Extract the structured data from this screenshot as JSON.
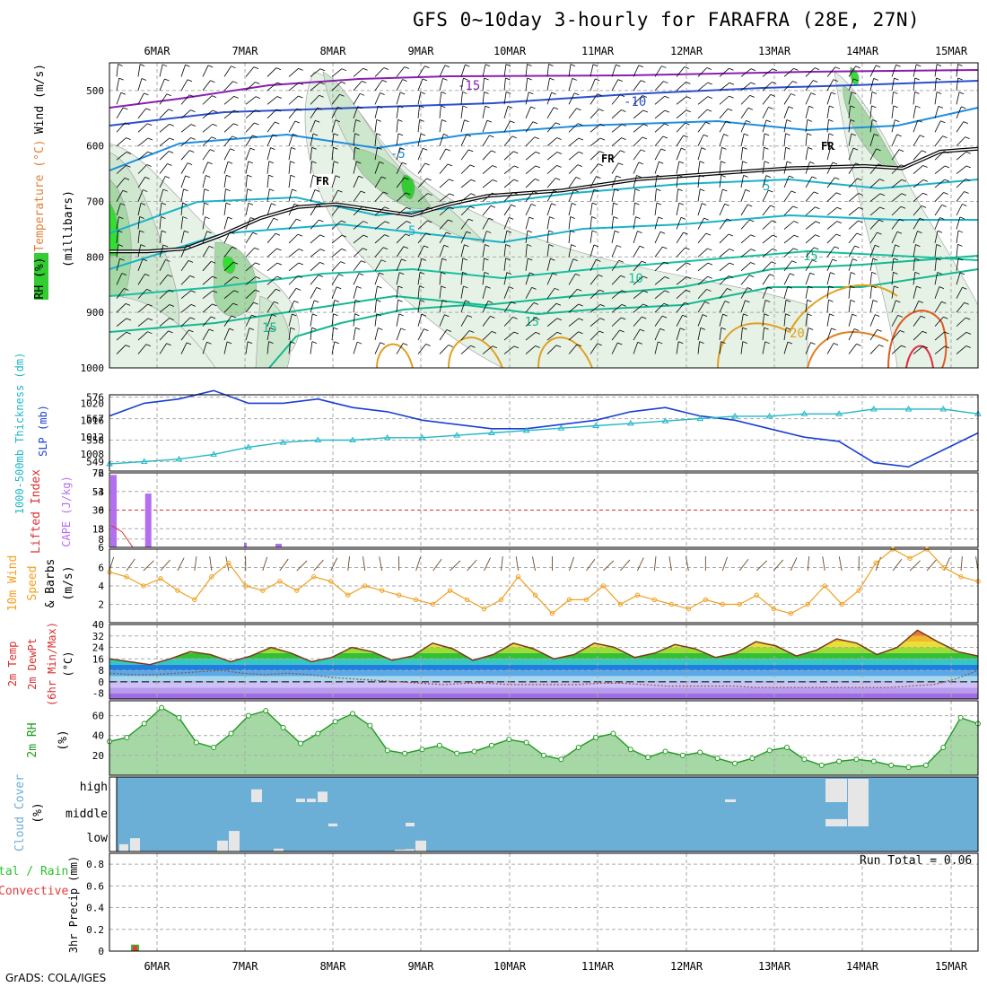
{
  "title": "GFS 0~10day 3-hourly for FARAFRA (28E, 27N)",
  "footer": "GrADS: COLA/IGES",
  "dates": [
    "6MAR",
    "7MAR",
    "8MAR",
    "9MAR",
    "10MAR",
    "11MAR",
    "12MAR",
    "13MAR",
    "14MAR",
    "15MAR"
  ],
  "colors": {
    "rh_green": "#33cc33",
    "slp_line": "#1a3fd1",
    "thickness_line": "#22b8c8",
    "cape_bar": "#b46ef0",
    "lifted_index": "#d93030",
    "wind_speed": "#f0a020",
    "rh2m": "#1f9a1f",
    "cloud_blue": "#6baed6",
    "precip_total": "#2dc02d",
    "precip_conv": "#e83a3a"
  },
  "chart_data": [
    {
      "type": "contour",
      "panel": "upper_air",
      "ylabel_parts": [
        "RH (%)",
        "Temperature (°C)",
        "Wind (m/s)"
      ],
      "ylabel2": "(millibars)",
      "yticks": [
        500,
        600,
        700,
        800,
        900,
        1000
      ],
      "ylim": [
        450,
        1000
      ],
      "temperature_contours": [
        -15,
        -10,
        -5,
        5,
        10,
        15,
        20
      ],
      "freezing_label": "FR",
      "freezing_level_mb": [
        790,
        790,
        785,
        760,
        730,
        710,
        705,
        715,
        725,
        705,
        690,
        685,
        680,
        670,
        660,
        655,
        650,
        645,
        640,
        638,
        636,
        640,
        610,
        605
      ]
    },
    {
      "type": "line",
      "panel": "slp_thickness",
      "ylabel_left": "1000-500mb Thickness (dm)",
      "ylabel_right": "SLP (mb)",
      "yticks_left": [
        549,
        558,
        567,
        576
      ],
      "yticks_right": [
        1008,
        1012,
        1016,
        1020
      ],
      "series": [
        {
          "name": "SLP",
          "values": [
            1017,
            1020,
            1021,
            1023,
            1020,
            1020,
            1021,
            1019,
            1018,
            1016,
            1015,
            1014,
            1014,
            1015,
            1016,
            1018,
            1019,
            1017,
            1016,
            1014,
            1012,
            1011,
            1006,
            1005,
            1009,
            1013
          ]
        },
        {
          "name": "Thickness",
          "values": [
            548,
            549,
            550,
            552,
            555,
            557,
            558,
            558,
            559,
            559,
            560,
            561,
            562,
            563,
            564,
            565,
            566,
            567,
            568,
            568,
            569,
            569,
            571,
            571,
            571,
            569
          ]
        }
      ]
    },
    {
      "type": "bar",
      "panel": "cape_li",
      "ylabel_left": "Lifted Index",
      "ylabel_right": "CAPE (J/kg)",
      "yticks_left": [
        -6,
        -3,
        0,
        3,
        6
      ],
      "yticks_right": [
        8,
        18,
        36,
        54,
        72
      ],
      "cape_values": [
        70,
        52,
        0,
        0,
        0,
        0,
        0,
        0,
        0,
        0,
        0,
        0,
        0,
        0,
        0,
        0,
        0,
        0,
        0,
        0,
        0,
        0,
        0,
        0,
        0,
        0
      ],
      "lifted_index": [
        2.5,
        3.5,
        6,
        6,
        6,
        6,
        6,
        6,
        6,
        6,
        6,
        6,
        6,
        6,
        6,
        6,
        6,
        6,
        6,
        6,
        6,
        6,
        6,
        6,
        6,
        6
      ]
    },
    {
      "type": "line",
      "panel": "wind10m",
      "ylabel": "10m Wind Speed & Barbs (m/s)",
      "yticks": [
        2,
        4,
        6
      ],
      "ylim": [
        0,
        8
      ],
      "values": [
        5.5,
        5.0,
        4.0,
        4.8,
        3.5,
        2.5,
        5.0,
        6.5,
        4.0,
        3.5,
        4.5,
        3.5,
        5.0,
        4.5,
        3.0,
        4.0,
        3.5,
        3.0,
        2.5,
        2.0,
        3.5,
        2.5,
        1.5,
        2.5,
        5.0,
        3.0,
        1.0,
        2.5,
        2.5,
        4.0,
        2.0,
        3.0,
        2.5,
        2.0,
        1.5,
        2.5,
        2.0,
        2.0,
        3.0,
        1.5,
        1.0,
        2.0,
        4.0,
        2.0,
        3.5,
        6.5,
        8.0,
        7.0,
        8.0,
        6.0,
        5.0,
        4.5
      ]
    },
    {
      "type": "area",
      "panel": "temp2m",
      "ylabel": "2m Temp 2m DewPt (6hr Min/Max) (°C)",
      "yticks": [
        -8,
        0,
        8,
        16,
        24,
        32,
        40
      ],
      "temperature": [
        16,
        14,
        12,
        16,
        21,
        19,
        14,
        18,
        24,
        20,
        14,
        17,
        24,
        21,
        15,
        18,
        27,
        23,
        15,
        19,
        27,
        23,
        16,
        19,
        27,
        24,
        17,
        20,
        26,
        23,
        17,
        20,
        28,
        25,
        18,
        22,
        30,
        27,
        19,
        24,
        36,
        28,
        21,
        18
      ],
      "dewpoint": [
        6,
        5,
        5,
        6,
        7,
        8,
        6,
        5,
        6,
        5,
        3,
        2,
        1,
        0,
        -1,
        -2,
        -1,
        -1,
        -2,
        -2,
        -2,
        -2,
        -1,
        -1,
        -2,
        -3,
        -3,
        -3,
        -3,
        -4,
        -4,
        -4,
        -4,
        -4,
        -4,
        -4,
        -3,
        -2,
        2,
        8
      ]
    },
    {
      "type": "area",
      "panel": "rh2m",
      "ylabel": "2m RH (%)",
      "yticks": [
        20,
        40,
        60
      ],
      "values": [
        34,
        38,
        52,
        68,
        58,
        33,
        28,
        42,
        60,
        65,
        48,
        32,
        42,
        54,
        62,
        50,
        25,
        22,
        26,
        30,
        22,
        24,
        30,
        36,
        33,
        20,
        16,
        28,
        38,
        42,
        26,
        18,
        24,
        20,
        23,
        17,
        12,
        17,
        25,
        28,
        16,
        10,
        14,
        16,
        14,
        10,
        8,
        10,
        28,
        58,
        52
      ]
    },
    {
      "type": "heatmap",
      "panel": "cloud",
      "ylabel": "Cloud Cover (%)",
      "ycategories": [
        "low",
        "middle",
        "high"
      ]
    },
    {
      "type": "bar",
      "panel": "precip",
      "ylabel": "3hr Precip (mm)",
      "ylabel_left_parts": [
        "Total / Rain",
        "Convective"
      ],
      "yticks": [
        0,
        0.2,
        0.4,
        0.6,
        0.8
      ],
      "run_total_label": "Run Total = 0.06",
      "values": [
        0.06,
        0,
        0,
        0,
        0,
        0,
        0,
        0,
        0,
        0
      ]
    }
  ]
}
